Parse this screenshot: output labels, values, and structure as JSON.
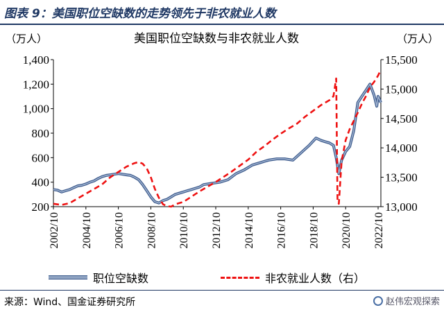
{
  "header": {
    "figure_title": "图表 9：美国职位空缺数的走势领先于非农就业人数"
  },
  "footer": {
    "source": "来源：Wind、国金证券研究所",
    "watermark": "赵伟宏观探索"
  },
  "colors": {
    "title": "#1f3864",
    "openings": "#3c5a8c",
    "payrolls": "#ee1111"
  },
  "chart_data": {
    "type": "line",
    "title": "美国职位空缺数与非农就业人数",
    "left_unit": "（万人）",
    "right_unit": "（万人）",
    "x_range": [
      2002.75,
      2022.92
    ],
    "x_ticks": [
      "2002/10",
      "2004/10",
      "2006/10",
      "2008/10",
      "2010/10",
      "2012/10",
      "2014/10",
      "2016/10",
      "2018/10",
      "2020/10",
      "2022/10"
    ],
    "y_left": {
      "range": [
        200,
        1400
      ],
      "ticks": [
        "200",
        "400",
        "600",
        "800",
        "1,000",
        "1,200",
        "1,400"
      ]
    },
    "y_right": {
      "range": [
        13000,
        15500
      ],
      "ticks": [
        "13,000",
        "13,500",
        "14,000",
        "14,500",
        "15,000",
        "15,500"
      ]
    },
    "grid": false,
    "legend_position": "bottom",
    "series": [
      {
        "name": "职位空缺数",
        "axis": "left",
        "style": "solid",
        "x": [
          2002.75,
          2003.0,
          2003.25,
          2003.5,
          2003.75,
          2004.0,
          2004.25,
          2004.5,
          2004.75,
          2005.0,
          2005.25,
          2005.5,
          2005.75,
          2006.0,
          2006.25,
          2006.5,
          2006.75,
          2007.0,
          2007.25,
          2007.5,
          2007.75,
          2008.0,
          2008.25,
          2008.5,
          2008.75,
          2009.0,
          2009.25,
          2009.5,
          2009.75,
          2010.0,
          2010.25,
          2010.5,
          2010.75,
          2011.0,
          2011.25,
          2011.5,
          2011.75,
          2012.0,
          2012.5,
          2013.0,
          2013.5,
          2014.0,
          2014.5,
          2015.0,
          2015.5,
          2016.0,
          2016.5,
          2017.0,
          2017.5,
          2018.0,
          2018.5,
          2018.92,
          2019.25,
          2019.5,
          2019.75,
          2020.0,
          2020.17,
          2020.33,
          2020.5,
          2020.75,
          2021.0,
          2021.25,
          2021.5,
          2021.75,
          2022.0,
          2022.25,
          2022.5,
          2022.67,
          2022.75,
          2022.92
        ],
        "values": [
          340,
          335,
          320,
          330,
          340,
          355,
          370,
          375,
          385,
          400,
          410,
          430,
          445,
          455,
          460,
          465,
          470,
          465,
          460,
          455,
          440,
          420,
          380,
          330,
          280,
          240,
          230,
          250,
          260,
          280,
          300,
          310,
          320,
          330,
          340,
          350,
          360,
          380,
          390,
          400,
          420,
          470,
          500,
          540,
          560,
          580,
          590,
          590,
          580,
          640,
          700,
          760,
          740,
          730,
          720,
          700,
          600,
          470,
          580,
          650,
          690,
          820,
          1050,
          1100,
          1150,
          1200,
          1110,
          1020,
          1100,
          1050
        ]
      },
      {
        "name": "非农就业人数（右）",
        "axis": "right",
        "style": "dashed",
        "x": [
          2002.75,
          2003.25,
          2003.75,
          2004.25,
          2004.75,
          2005.25,
          2005.75,
          2006.25,
          2006.75,
          2007.25,
          2007.75,
          2008.0,
          2008.25,
          2008.5,
          2008.75,
          2009.0,
          2009.25,
          2009.5,
          2009.75,
          2010.0,
          2010.25,
          2010.75,
          2011.25,
          2011.75,
          2012.25,
          2012.75,
          2013.25,
          2013.75,
          2014.25,
          2014.75,
          2015.25,
          2015.75,
          2016.25,
          2016.75,
          2017.25,
          2017.75,
          2018.25,
          2018.75,
          2019.25,
          2019.75,
          2020.0,
          2020.17,
          2020.25,
          2020.33,
          2020.5,
          2020.75,
          2021.0,
          2021.5,
          2021.75,
          2022.0,
          2022.25,
          2022.5,
          2022.75,
          2022.92
        ],
        "values": [
          13050,
          13030,
          13060,
          13140,
          13220,
          13300,
          13380,
          13500,
          13590,
          13680,
          13740,
          13760,
          13730,
          13650,
          13500,
          13300,
          13150,
          13040,
          13010,
          13000,
          13040,
          13080,
          13170,
          13260,
          13340,
          13420,
          13510,
          13600,
          13700,
          13800,
          13930,
          14030,
          14140,
          14240,
          14330,
          14410,
          14530,
          14630,
          14730,
          14810,
          14880,
          15180,
          13080,
          13050,
          13770,
          14130,
          14320,
          14600,
          14750,
          14880,
          15030,
          15120,
          15230,
          15330
        ]
      }
    ]
  }
}
